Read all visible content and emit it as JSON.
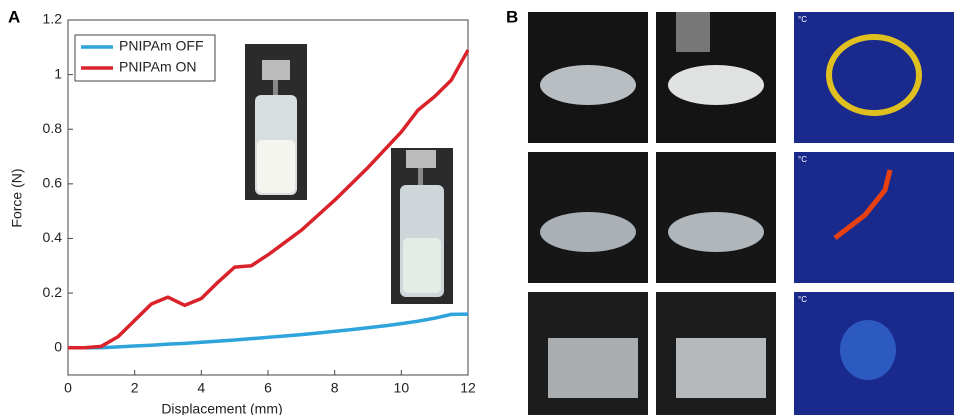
{
  "chart_data": {
    "type": "line",
    "xlabel": "Displacement (mm)",
    "ylabel": "Force (N)",
    "x": [
      0,
      0.5,
      1,
      1.5,
      2,
      2.5,
      3,
      3.5,
      4,
      4.5,
      5,
      5.5,
      6,
      6.5,
      7,
      7.5,
      8,
      8.5,
      9,
      9.5,
      10,
      10.5,
      11,
      11.5,
      12
    ],
    "series": [
      {
        "name": "PNIPAm OFF",
        "color": "#2ea3dc",
        "values": [
          0,
          0,
          0,
          0.003,
          0.006,
          0.009,
          0.013,
          0.016,
          0.02,
          0.024,
          0.028,
          0.033,
          0.038,
          0.043,
          0.048,
          0.054,
          0.06,
          0.066,
          0.073,
          0.08,
          0.088,
          0.097,
          0.108,
          0.122,
          0.123
        ]
      },
      {
        "name": "PNIPAm ON",
        "color": "#d9222a",
        "values": [
          0,
          0,
          0.005,
          0.04,
          0.1,
          0.16,
          0.185,
          0.155,
          0.18,
          0.24,
          0.295,
          0.3,
          0.34,
          0.385,
          0.43,
          0.485,
          0.54,
          0.6,
          0.66,
          0.725,
          0.79,
          0.87,
          0.92,
          0.98,
          1.09
        ]
      }
    ],
    "xlim": [
      0,
      12
    ],
    "xticks": [
      0,
      2,
      4,
      6,
      8,
      10,
      12
    ],
    "ylim": [
      -0.1,
      1.2
    ],
    "yticks": [
      0,
      0.2,
      0.4,
      0.6,
      0.8,
      1,
      1.2
    ],
    "grid": false,
    "legend": "upper left"
  },
  "panels": {
    "a": "A",
    "b": "B"
  },
  "photos": {
    "thermal_units": [
      "°C",
      "°C",
      "°C"
    ]
  }
}
